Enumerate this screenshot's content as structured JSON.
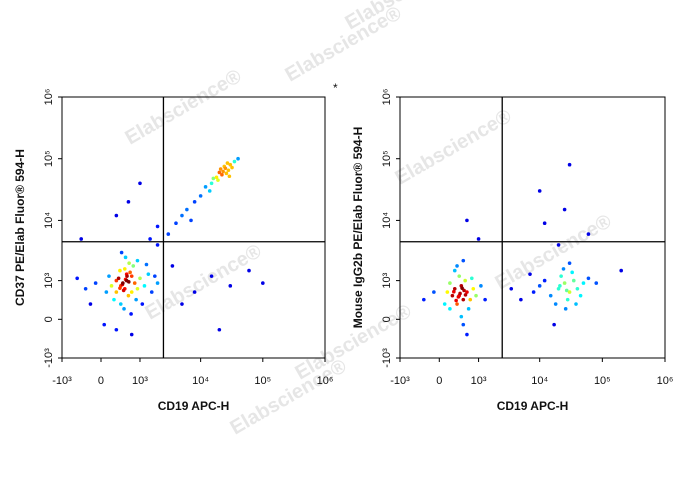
{
  "watermark": "Elabscience®",
  "annotation": "*",
  "chart_data": [
    {
      "type": "scatter",
      "scale": "asinh",
      "xlabel": "CD19 APC-H",
      "ylabel": "CD37 PE/Elab Fluor® 594-H",
      "xlim": [
        -1000,
        1000000
      ],
      "ylim": [
        -1000,
        1000000
      ],
      "xticks": [
        {
          "value": -1000,
          "label": "-10³"
        },
        0,
        {
          "value": 1000,
          "label": "10³"
        },
        {
          "value": 10000,
          "label": "10⁴"
        },
        {
          "value": 100000,
          "label": "10⁵"
        },
        {
          "value": 1000000,
          "label": "10⁶"
        }
      ],
      "yticks": [
        {
          "value": -1000,
          "label": "-10³"
        },
        0,
        {
          "value": 1000,
          "label": "10³"
        },
        {
          "value": 10000,
          "label": "10⁴"
        },
        {
          "value": 100000,
          "label": "10⁵"
        },
        {
          "value": 1000000,
          "label": "10⁶"
        }
      ],
      "gates": {
        "x": 2500,
        "y": 4500
      },
      "x": [
        400,
        550,
        300,
        700,
        500,
        450,
        600,
        350,
        800,
        650,
        250,
        900,
        500,
        400,
        700,
        550,
        300,
        1000,
        200,
        750,
        480,
        620,
        150,
        1200,
        380,
        850,
        100,
        1400,
        520,
        680,
        -100,
        1600,
        300,
        900,
        -300,
        1100,
        420,
        1800,
        -500,
        60,
        2000,
        700,
        -200,
        1300,
        560,
        440,
        610,
        380,
        520,
        470,
        20000,
        25000,
        18000,
        30000,
        22000,
        28000,
        15000,
        35000,
        24000,
        19000,
        26000,
        32000,
        12000,
        21000,
        27000,
        16000,
        40000,
        23000,
        14000,
        29000,
        3000,
        5000,
        8000,
        4000,
        10000,
        6000,
        2000,
        7000,
        1500,
        8000,
        15000,
        30000,
        60000,
        5000,
        20000,
        100000,
        3500,
        1000,
        300,
        600,
        2000,
        -400
      ],
      "values": [
        800,
        1000,
        600,
        1200,
        700,
        900,
        500,
        1100,
        900,
        1400,
        400,
        700,
        1600,
        300,
        600,
        1300,
        1000,
        1100,
        800,
        1800,
        200,
        2000,
        1200,
        800,
        1500,
        400,
        600,
        1300,
        2500,
        100,
        900,
        600,
        -200,
        2200,
        700,
        300,
        3000,
        1200,
        1100,
        -100,
        900,
        -300,
        300,
        1900,
        1200,
        850,
        950,
        720,
        1050,
        650,
        60000,
        70000,
        50000,
        80000,
        55000,
        65000,
        40000,
        90000,
        75000,
        45000,
        58000,
        72000,
        35000,
        68000,
        85000,
        48000,
        100000,
        62000,
        30000,
        52000,
        6000,
        12000,
        20000,
        9000,
        25000,
        15000,
        4000,
        10000,
        5000,
        600,
        1200,
        800,
        1500,
        300,
        -200,
        900,
        1800,
        40000,
        12000,
        20000,
        8000,
        5000
      ]
    },
    {
      "type": "scatter",
      "scale": "asinh",
      "xlabel": "CD19 APC-H",
      "ylabel": "Mouse IgG2b PE/Elab Fluor® 594-H",
      "xlim": [
        -1000,
        1000000
      ],
      "ylim": [
        -1000,
        1000000
      ],
      "xticks": [
        {
          "value": -1000,
          "label": "-10³"
        },
        0,
        {
          "value": 1000,
          "label": "10³"
        },
        {
          "value": 10000,
          "label": "10⁴"
        },
        {
          "value": 100000,
          "label": "10⁵"
        },
        {
          "value": 1000000,
          "label": "10⁶"
        }
      ],
      "yticks": [
        {
          "value": -1000,
          "label": "-10³"
        },
        0,
        {
          "value": 1000,
          "label": "10³"
        },
        {
          "value": 10000,
          "label": "10⁴"
        },
        {
          "value": 100000,
          "label": "10⁵"
        },
        {
          "value": 1000000,
          "label": "10⁶"
        }
      ],
      "gates": {
        "x": 2500,
        "y": 4500
      },
      "x": [
        400,
        300,
        500,
        600,
        350,
        450,
        250,
        550,
        700,
        200,
        800,
        400,
        150,
        650,
        500,
        300,
        900,
        100,
        750,
        450,
        -100,
        1100,
        350,
        600,
        -300,
        1300,
        500,
        200,
        420,
        380,
        520,
        330,
        470,
        560,
        280,
        20000,
        25000,
        30000,
        15000,
        35000,
        10000,
        28000,
        40000,
        22000,
        18000,
        50000,
        8000,
        33000,
        26000,
        12000,
        45000,
        5000,
        60000,
        24000,
        17000,
        30000,
        38000,
        21000,
        27000,
        7000,
        3500,
        80000,
        200000,
        30000,
        25000,
        10000,
        12000,
        60000,
        600,
        1000,
        20000
      ],
      "values": [
        500,
        700,
        400,
        600,
        300,
        800,
        500,
        1000,
        400,
        200,
        700,
        1200,
        600,
        200,
        -100,
        1500,
        500,
        300,
        1100,
        50,
        600,
        800,
        1800,
        -300,
        400,
        400,
        2200,
        900,
        560,
        470,
        650,
        380,
        720,
        520,
        610,
        700,
        900,
        600,
        500,
        1000,
        800,
        400,
        700,
        1200,
        300,
        900,
        600,
        1400,
        200,
        1000,
        500,
        400,
        1100,
        1600,
        -100,
        2000,
        300,
        800,
        650,
        1300,
        700,
        900,
        1500,
        80000,
        15000,
        30000,
        9000,
        6000,
        10000,
        5000,
        4000
      ]
    }
  ]
}
